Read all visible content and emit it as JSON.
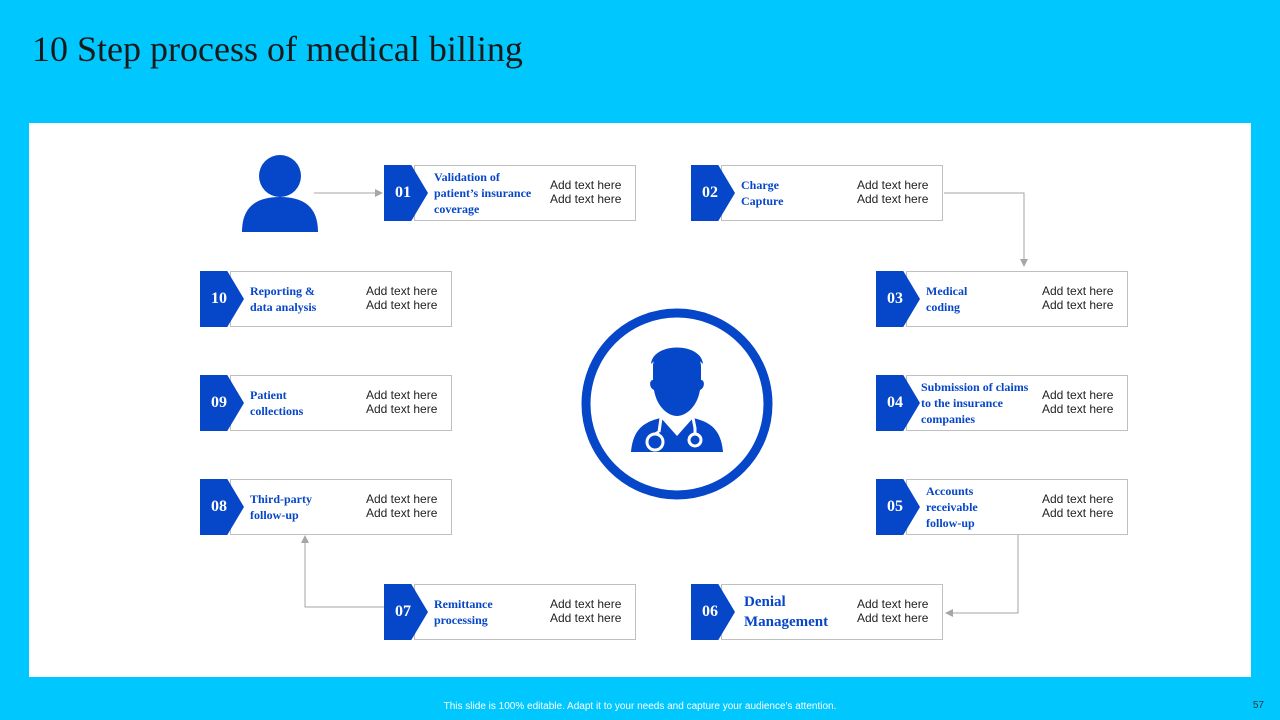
{
  "title": "10 Step process of medical billing",
  "colors": {
    "background": "#00c8ff",
    "accent": "#0646c8",
    "panel": "#ffffff"
  },
  "icons": {
    "user": "user-icon",
    "doctor": "doctor-icon"
  },
  "steps": [
    {
      "num": "01",
      "label": "Validation of patient’s insurance coverage",
      "desc1": "Add text here",
      "desc2": "Add text here"
    },
    {
      "num": "02",
      "label": "Charge Capture",
      "desc1": "Add text here",
      "desc2": "Add text here"
    },
    {
      "num": "03",
      "label": "Medical coding",
      "desc1": "Add text here",
      "desc2": "Add text here"
    },
    {
      "num": "04",
      "label": "Submission of claims to the insurance companies",
      "desc1": "Add text here",
      "desc2": "Add text here"
    },
    {
      "num": "05",
      "label": "Accounts receivable follow-up",
      "desc1": "Add text here",
      "desc2": "Add text here"
    },
    {
      "num": "06",
      "label": "Denial Management",
      "desc1": "Add text here",
      "desc2": "Add text here"
    },
    {
      "num": "07",
      "label": "Remittance processing",
      "desc1": "Add text here",
      "desc2": "Add text here"
    },
    {
      "num": "08",
      "label": "Third-party follow-up",
      "desc1": "Add text here",
      "desc2": "Add text here"
    },
    {
      "num": "09",
      "label": "Patient collections",
      "desc1": "Add text here",
      "desc2": "Add text here"
    },
    {
      "num": "10",
      "label": "Reporting & data analysis",
      "desc1": "Add text here",
      "desc2": "Add text here"
    }
  ],
  "footer": "This slide is 100% editable. Adapt it to your needs and capture your audience's attention.",
  "page_number": "57"
}
